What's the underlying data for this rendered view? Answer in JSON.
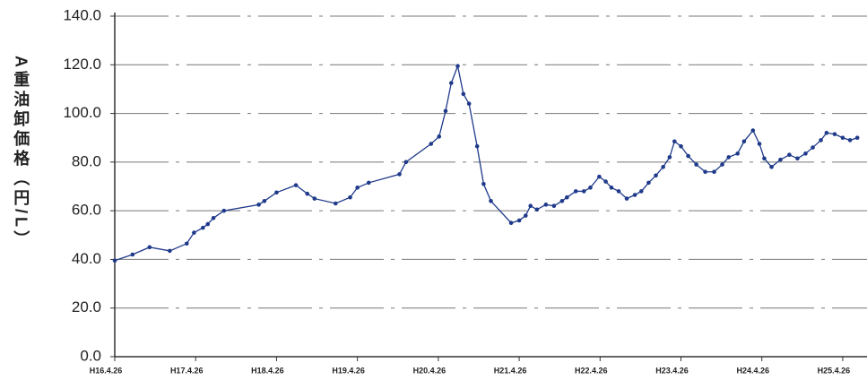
{
  "chart_data": {
    "type": "line",
    "y_label": "A重油卸価格（円/L）",
    "series": [
      {
        "name": null,
        "color": "#1f3a8a",
        "x": [
          16.0,
          16.22,
          16.43,
          16.68,
          16.89,
          16.98,
          17.09,
          17.15,
          17.22,
          17.35,
          17.78,
          17.85,
          18.0,
          18.24,
          18.38,
          18.47,
          18.73,
          18.91,
          19.0,
          19.14,
          19.52,
          19.6,
          19.91,
          20.01,
          20.09,
          20.16,
          20.24,
          20.31,
          20.38,
          20.48,
          20.56,
          20.65,
          20.9,
          21.0,
          21.08,
          21.14,
          21.22,
          21.33,
          21.43,
          21.53,
          21.59,
          21.7,
          21.8,
          21.88,
          21.99,
          22.07,
          22.14,
          22.23,
          22.33,
          22.43,
          22.51,
          22.6,
          22.69,
          22.78,
          22.86,
          22.92,
          23.0,
          23.09,
          23.19,
          23.3,
          23.41,
          23.51,
          23.59,
          23.7,
          23.78,
          23.89,
          23.97,
          24.03,
          24.12,
          24.23,
          24.34,
          24.44,
          24.54,
          24.63,
          24.73,
          24.8,
          24.9,
          25.0,
          25.09,
          25.18
        ],
        "values": [
          39.5,
          42,
          45,
          43.5,
          46.5,
          51,
          53,
          54.5,
          57,
          60,
          62.5,
          64,
          67.5,
          70.5,
          67,
          65,
          63,
          65.5,
          69.5,
          71.5,
          75,
          80,
          87.5,
          90.5,
          101,
          112.5,
          119.5,
          108,
          104,
          86.5,
          71,
          64,
          55,
          56,
          58,
          62,
          60.5,
          62.5,
          62,
          64,
          65.5,
          68,
          68,
          69.5,
          74,
          72,
          69.5,
          68,
          65,
          66.5,
          68,
          71.5,
          74.5,
          78,
          82,
          88.5,
          86.5,
          82.5,
          79,
          76,
          76,
          79,
          82,
          83.5,
          88.5,
          93,
          87.5,
          81.5,
          78,
          81,
          83,
          81.5,
          83.5,
          86,
          89,
          92,
          91.5,
          90,
          89,
          90
        ]
      }
    ],
    "xlim": [
      16,
      25.3
    ],
    "xticks": [
      {
        "value": 16,
        "label": "H16.4.26"
      },
      {
        "value": 17,
        "label": "H17.4.26"
      },
      {
        "value": 18,
        "label": "H18.4.26"
      },
      {
        "value": 19,
        "label": "H19.4.26"
      },
      {
        "value": 20,
        "label": "H20.4.26"
      },
      {
        "value": 21,
        "label": "H21.4.26"
      },
      {
        "value": 22,
        "label": "H22.4.26"
      },
      {
        "value": 23,
        "label": "H23.4.26"
      },
      {
        "value": 24,
        "label": "H24.4.26"
      },
      {
        "value": 25,
        "label": "H25.4.26"
      }
    ],
    "ylim": [
      0,
      140
    ],
    "yticks": [
      {
        "value": 0,
        "label": "0.0"
      },
      {
        "value": 20,
        "label": "20.0"
      },
      {
        "value": 40,
        "label": "40.0"
      },
      {
        "value": 60,
        "label": "60.0"
      },
      {
        "value": 80,
        "label": "80.0"
      },
      {
        "value": 100,
        "label": "100.0"
      },
      {
        "value": 120,
        "label": "120.0"
      },
      {
        "value": 140,
        "label": "140.0"
      }
    ],
    "grid": true
  }
}
